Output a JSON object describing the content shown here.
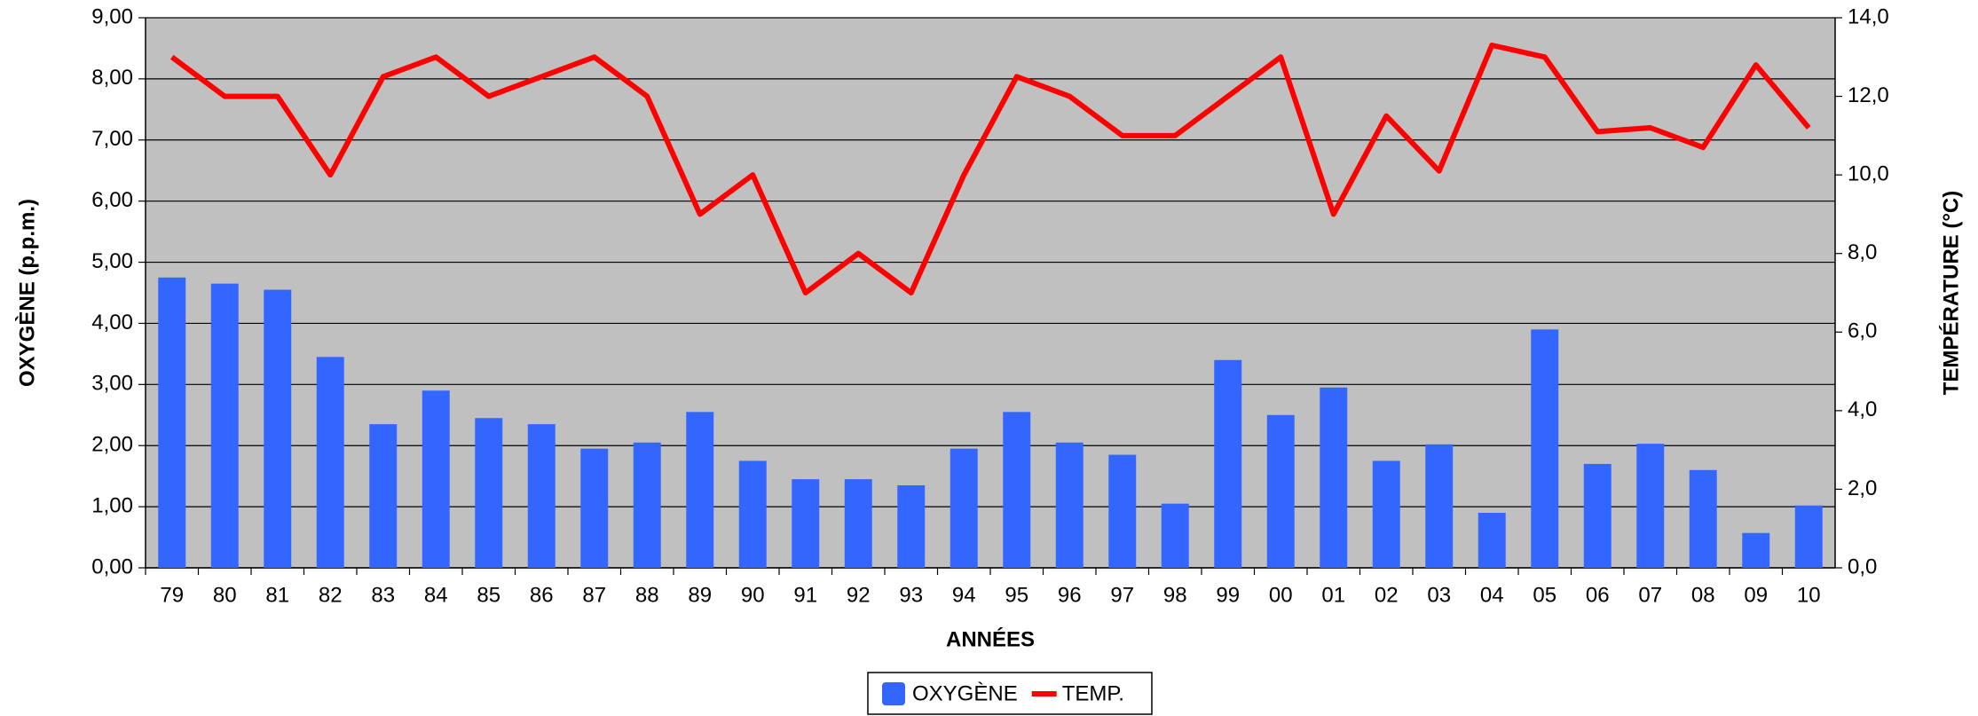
{
  "chart_data": {
    "type": "bar",
    "xlabel": "ANNÉES",
    "ylabel": "OXYGÈNE (p.p.m.)",
    "y2label": "TEMPÉRATURE (°C)",
    "categories": [
      "79",
      "80",
      "81",
      "82",
      "83",
      "84",
      "85",
      "86",
      "87",
      "88",
      "89",
      "90",
      "91",
      "92",
      "93",
      "94",
      "95",
      "96",
      "97",
      "98",
      "99",
      "00",
      "01",
      "02",
      "03",
      "04",
      "05",
      "06",
      "07",
      "08",
      "09",
      "10"
    ],
    "series": [
      {
        "name": "OXYGÈNE",
        "type": "bar",
        "color": "#3366ff",
        "values": [
          4.75,
          4.65,
          4.55,
          3.45,
          2.35,
          2.9,
          2.45,
          2.35,
          1.95,
          2.05,
          2.55,
          1.75,
          1.45,
          1.45,
          1.35,
          1.95,
          2.55,
          2.05,
          1.85,
          1.05,
          3.4,
          2.5,
          2.95,
          1.75,
          2.02,
          0.9,
          3.9,
          1.7,
          2.03,
          1.6,
          0.57,
          1.02
        ]
      },
      {
        "name": "TEMP.",
        "type": "line",
        "axis": "y2",
        "color": "#ff0000",
        "values": [
          13,
          12,
          12,
          10,
          12.5,
          13,
          12,
          12.5,
          13,
          12,
          9,
          10,
          7,
          8,
          7,
          10,
          12.5,
          12,
          11,
          11,
          12,
          13,
          9,
          11.5,
          10.1,
          13.3,
          13,
          11.1,
          11.2,
          10.7,
          12.8,
          11.2
        ]
      }
    ],
    "ylim": [
      0,
      9
    ],
    "yticks": [
      {
        "value": 0,
        "label": "0,00"
      },
      {
        "value": 1,
        "label": "1,00"
      },
      {
        "value": 2,
        "label": "2,00"
      },
      {
        "value": 3,
        "label": "3,00"
      },
      {
        "value": 4,
        "label": "4,00"
      },
      {
        "value": 5,
        "label": "5,00"
      },
      {
        "value": 6,
        "label": "6,00"
      },
      {
        "value": 7,
        "label": "7,00"
      },
      {
        "value": 8,
        "label": "8,00"
      },
      {
        "value": 9,
        "label": "9,00"
      }
    ],
    "y2lim": [
      0,
      14
    ],
    "y2ticks": [
      {
        "value": 0,
        "label": "0,0"
      },
      {
        "value": 2,
        "label": "2,0"
      },
      {
        "value": 4,
        "label": "4,0"
      },
      {
        "value": 6,
        "label": "6,0"
      },
      {
        "value": 8,
        "label": "8,0"
      },
      {
        "value": 10,
        "label": "10,0"
      },
      {
        "value": 12,
        "label": "12,0"
      },
      {
        "value": 14,
        "label": "14,0"
      }
    ],
    "grid": true,
    "legend": "bottom"
  }
}
